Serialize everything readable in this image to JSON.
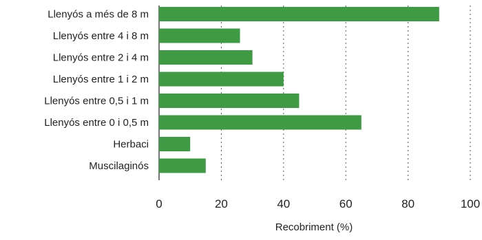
{
  "chart_data": {
    "type": "bar",
    "orientation": "horizontal",
    "categories": [
      "Llenyós a més de 8 m",
      "Llenyós entre 4 i 8 m",
      "Llenyós entre 2 i 4 m",
      "Llenyós entre 1 i 2 m",
      "Llenyós entre 0,5 i 1 m",
      "Llenyós entre 0 i 0,5 m",
      "Herbaci",
      "Muscilaginós"
    ],
    "values": [
      90,
      26,
      30,
      40,
      45,
      65,
      10,
      15
    ],
    "title": "",
    "xlabel": "Recobriment (%)",
    "ylabel": "",
    "xlim": [
      0,
      100
    ],
    "xticks": [
      0,
      20,
      40,
      60,
      80,
      100
    ],
    "grid": true,
    "legend": "none",
    "bar_color": "#3e9b43",
    "grid_color": "#555555"
  }
}
